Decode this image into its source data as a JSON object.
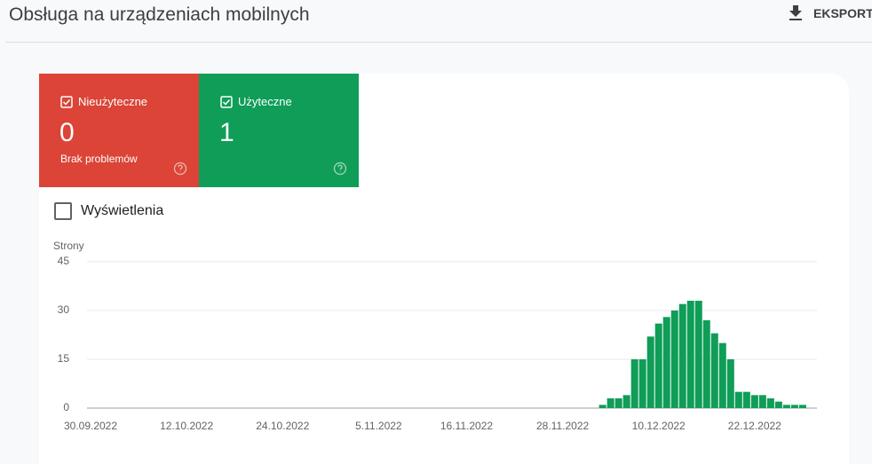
{
  "header": {
    "title": "Obsługa na urządzeniach mobilnych",
    "action": "EKSPORT"
  },
  "cards": [
    {
      "label": "Nieużyteczne",
      "value": "0",
      "note": "Brak problemów",
      "color": "#db4437"
    },
    {
      "label": "Użyteczne",
      "value": "1",
      "color": "#0f9d58"
    }
  ],
  "toggle": "Wyświetlenia",
  "chart_data": {
    "type": "bar",
    "y_label": "Strony",
    "color": "#0f9d58",
    "ylim": [
      0,
      45
    ],
    "yticks": [
      0,
      15,
      30,
      45
    ],
    "grid": true,
    "categories": [
      "30.09.2022",
      null,
      null,
      null,
      null,
      null,
      null,
      null,
      null,
      null,
      null,
      null,
      "12.10.2022",
      null,
      null,
      null,
      null,
      null,
      null,
      null,
      null,
      null,
      null,
      null,
      "24.10.2022",
      null,
      null,
      null,
      null,
      null,
      null,
      null,
      null,
      null,
      null,
      null,
      "5.11.2022",
      null,
      null,
      null,
      null,
      null,
      null,
      null,
      null,
      null,
      null,
      "16.11.2022",
      null,
      null,
      null,
      null,
      null,
      null,
      null,
      null,
      null,
      null,
      null,
      "28.11.2022",
      null,
      null,
      null,
      null,
      null,
      null,
      null,
      null,
      null,
      null,
      null,
      "10.12.2022",
      null,
      null,
      null,
      null,
      null,
      null,
      null,
      null,
      null,
      null,
      null,
      "22.12.2022",
      null,
      null,
      null,
      null,
      null,
      null
    ],
    "values": [
      0,
      0,
      0,
      0,
      0,
      0,
      0,
      0,
      0,
      0,
      0,
      0,
      0,
      0,
      0,
      0,
      0,
      0,
      0,
      0,
      0,
      0,
      0,
      0,
      0,
      0,
      0,
      0,
      0,
      0,
      0,
      0,
      0,
      0,
      0,
      0,
      0,
      0,
      0,
      0,
      0,
      0,
      0,
      0,
      0,
      0,
      0,
      0,
      0,
      0,
      0,
      0,
      0,
      0,
      0,
      0,
      0,
      0,
      0,
      0,
      0,
      0,
      0,
      0,
      1,
      3,
      3,
      4,
      15,
      15,
      22,
      26,
      28,
      30,
      32,
      33,
      33,
      27,
      23,
      20,
      15,
      5,
      5,
      4,
      4,
      3,
      2,
      1,
      1,
      1
    ]
  }
}
